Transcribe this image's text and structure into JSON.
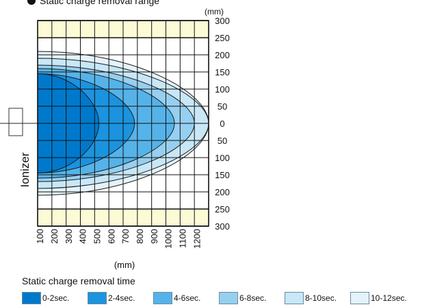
{
  "chart_data": {
    "type": "area",
    "title": "Static charge removal range",
    "x_unit": "(mm)",
    "y_unit": "(mm)",
    "x_ticks": [
      "100",
      "200",
      "300",
      "400",
      "500",
      "600",
      "700",
      "800",
      "900",
      "1000",
      "1100",
      "1200"
    ],
    "y_ticks_upper": [
      "300",
      "250",
      "200",
      "150",
      "100",
      "50"
    ],
    "y_tick_zero": "0",
    "y_ticks_lower": [
      "50",
      "100",
      "150",
      "200",
      "250",
      "300"
    ],
    "xlim": [
      0,
      1200
    ],
    "ylim": [
      -300,
      300
    ],
    "grid": true,
    "side_label": "Ionizer",
    "legend_title": "Static charge removal time",
    "series": [
      {
        "name": "10-12sec.",
        "color": "#e4f3fb",
        "reach_x": 1200,
        "half_width_y": 210
      },
      {
        "name": "8-10sec.",
        "color": "#c8e7f7",
        "reach_x": 1200,
        "half_width_y": 190
      },
      {
        "name": "6-8sec.",
        "color": "#96cff0",
        "reach_x": 1100,
        "half_width_y": 170
      },
      {
        "name": "4-6sec.",
        "color": "#55b3e9",
        "reach_x": 960,
        "half_width_y": 160
      },
      {
        "name": "2-4sec.",
        "color": "#1c93de",
        "reach_x": 680,
        "half_width_y": 145
      },
      {
        "name": "0-2sec.",
        "color": "#0079cc",
        "reach_x": 430,
        "half_width_y": 145
      }
    ],
    "legend": [
      {
        "label": "0-2sec.",
        "color": "#0079cc"
      },
      {
        "label": "2-4sec.",
        "color": "#1c93de"
      },
      {
        "label": "4-6sec.",
        "color": "#55b3e9"
      },
      {
        "label": "6-8sec.",
        "color": "#96cff0"
      },
      {
        "label": "8-10sec.",
        "color": "#c8e7f7"
      },
      {
        "label": "10-12sec.",
        "color": "#e4f3fb"
      }
    ],
    "band_color": "#fdfad6"
  }
}
